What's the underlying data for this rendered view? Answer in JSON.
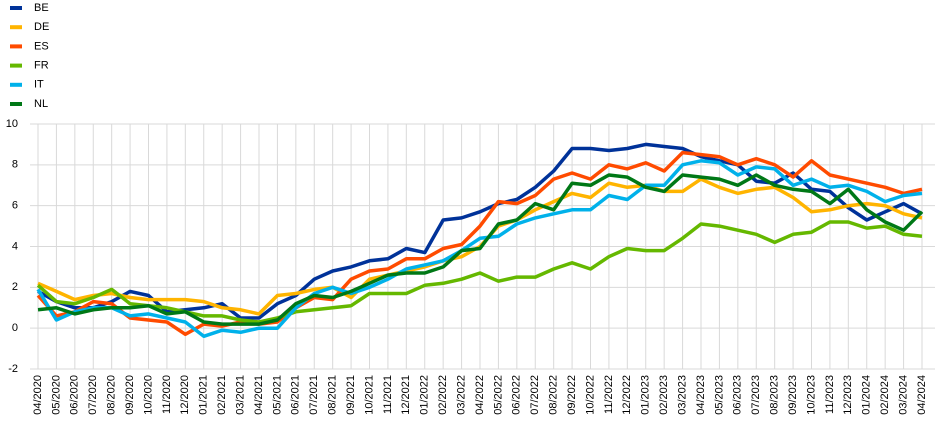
{
  "chart_data": {
    "type": "line",
    "categories": [
      "04/2020",
      "05/2020",
      "06/2020",
      "07/2020",
      "08/2020",
      "09/2020",
      "10/2020",
      "11/2020",
      "12/2020",
      "01/2021",
      "02/2021",
      "03/2021",
      "04/2021",
      "05/2021",
      "06/2021",
      "07/2021",
      "08/2021",
      "09/2021",
      "10/2021",
      "11/2021",
      "12/2021",
      "01/2022",
      "02/2022",
      "03/2022",
      "04/2022",
      "05/2022",
      "06/2022",
      "07/2022",
      "08/2022",
      "09/2022",
      "10/2022",
      "11/2022",
      "12/2022",
      "01/2023",
      "02/2023",
      "03/2023",
      "04/2023",
      "05/2023",
      "06/2023",
      "07/2023",
      "08/2023",
      "09/2023",
      "10/2023",
      "11/2023",
      "12/2023",
      "01/2024",
      "02/2024",
      "03/2024",
      "04/2024"
    ],
    "series": [
      {
        "name": "BE",
        "color": "#003299",
        "values": [
          1.8,
          1.3,
          1.0,
          1.0,
          1.3,
          1.8,
          1.6,
          0.8,
          0.9,
          1.0,
          1.2,
          0.5,
          0.5,
          1.2,
          1.6,
          2.4,
          2.8,
          3.0,
          3.3,
          3.4,
          3.9,
          3.7,
          5.3,
          5.4,
          5.7,
          6.1,
          6.3,
          6.9,
          7.7,
          8.8,
          8.8,
          8.7,
          8.8,
          9.0,
          8.9,
          8.8,
          8.4,
          8.2,
          8.0,
          7.2,
          7.1,
          7.6,
          6.8,
          6.7,
          5.9,
          5.3,
          5.7,
          6.1,
          5.6
        ]
      },
      {
        "name": "DE",
        "color": "#ffb400",
        "values": [
          2.2,
          1.8,
          1.4,
          1.6,
          1.7,
          1.5,
          1.4,
          1.4,
          1.4,
          1.3,
          1.0,
          0.9,
          0.7,
          1.6,
          1.7,
          1.9,
          2.0,
          1.5,
          2.4,
          2.6,
          2.8,
          3.0,
          3.3,
          3.5,
          4.0,
          5.0,
          5.3,
          5.8,
          6.2,
          6.6,
          6.4,
          7.1,
          6.9,
          7.0,
          6.7,
          6.7,
          7.3,
          6.9,
          6.6,
          6.8,
          6.9,
          6.4,
          5.7,
          5.8,
          6.0,
          6.1,
          6.0,
          5.6,
          5.4
        ]
      },
      {
        "name": "ES",
        "color": "#ff4b00",
        "values": [
          1.6,
          0.6,
          0.8,
          1.3,
          1.2,
          0.5,
          0.4,
          0.3,
          -0.3,
          0.2,
          0.1,
          0.3,
          0.2,
          0.3,
          1.0,
          1.5,
          1.4,
          2.4,
          2.8,
          2.9,
          3.4,
          3.4,
          3.9,
          4.1,
          5.0,
          6.2,
          6.1,
          6.5,
          7.3,
          7.6,
          7.3,
          8.0,
          7.8,
          8.1,
          7.7,
          8.6,
          8.5,
          8.4,
          8.0,
          8.3,
          8.0,
          7.4,
          8.2,
          7.5,
          7.3,
          7.1,
          6.9,
          6.6,
          6.8
        ]
      },
      {
        "name": "FR",
        "color": "#65b800",
        "values": [
          2.1,
          1.3,
          1.2,
          1.5,
          1.9,
          1.2,
          1.1,
          1.0,
          0.8,
          0.6,
          0.6,
          0.4,
          0.3,
          0.5,
          0.8,
          0.9,
          1.0,
          1.1,
          1.7,
          1.7,
          1.7,
          2.1,
          2.2,
          2.4,
          2.7,
          2.3,
          2.5,
          2.5,
          2.9,
          3.2,
          2.9,
          3.5,
          3.9,
          3.8,
          3.8,
          4.4,
          5.1,
          5.0,
          4.8,
          4.6,
          4.2,
          4.6,
          4.7,
          5.2,
          5.2,
          4.9,
          5.0,
          4.6,
          4.5
        ]
      },
      {
        "name": "IT",
        "color": "#00b1ea",
        "values": [
          1.9,
          0.4,
          0.8,
          1.0,
          1.0,
          0.6,
          0.7,
          0.5,
          0.3,
          -0.4,
          -0.1,
          -0.2,
          0.0,
          0.0,
          1.0,
          1.7,
          2.0,
          1.7,
          2.0,
          2.4,
          2.9,
          3.1,
          3.3,
          3.8,
          4.4,
          4.5,
          5.1,
          5.4,
          5.6,
          5.8,
          5.8,
          6.5,
          6.3,
          7.0,
          7.0,
          8.0,
          8.2,
          8.1,
          7.5,
          7.9,
          7.8,
          7.0,
          7.3,
          6.9,
          7.0,
          6.7,
          6.2,
          6.5,
          6.6
        ]
      },
      {
        "name": "NL",
        "color": "#007816",
        "values": [
          0.9,
          1.0,
          0.7,
          0.9,
          1.0,
          1.0,
          1.1,
          0.7,
          0.8,
          0.3,
          0.2,
          0.2,
          0.2,
          0.4,
          1.2,
          1.6,
          1.5,
          1.8,
          2.2,
          2.6,
          2.7,
          2.7,
          3.0,
          3.8,
          3.9,
          5.1,
          5.3,
          6.1,
          5.8,
          7.1,
          7.0,
          7.5,
          7.4,
          6.9,
          6.7,
          7.5,
          7.4,
          7.3,
          7.0,
          7.5,
          7.0,
          6.8,
          6.7,
          6.1,
          6.8,
          5.8,
          5.2,
          4.8,
          5.7
        ]
      }
    ],
    "ylim": [
      -2,
      10
    ],
    "yticks": [
      -2,
      0,
      2,
      4,
      6,
      8,
      10
    ],
    "grid": true,
    "legend": "top-left"
  }
}
